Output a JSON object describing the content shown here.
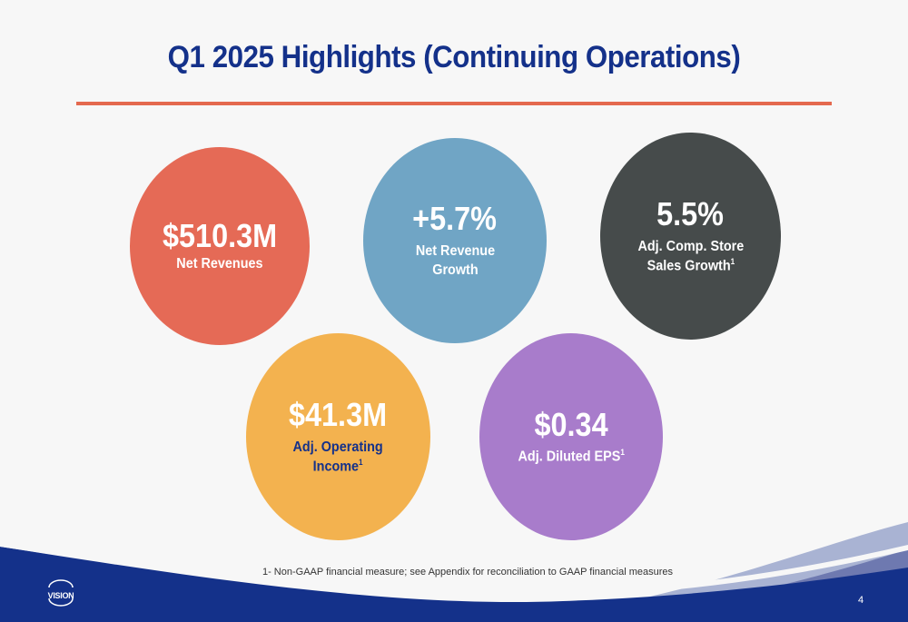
{
  "slide": {
    "title": "Q1 2025 Highlights (Continuing Operations)",
    "page_number": "4",
    "footnote": "1- Non-GAAP financial measure; see Appendix for reconciliation to GAAP financial measures",
    "logo_text": "VISION"
  },
  "highlights": [
    {
      "value": "$510.3M",
      "label_line1": "Net Revenues",
      "label_line2": "",
      "footnote_marker": "",
      "color": "#e56a56"
    },
    {
      "value": "+5.7%",
      "label_line1": "Net Revenue",
      "label_line2": "Growth",
      "footnote_marker": "",
      "color": "#70a5c5"
    },
    {
      "value": "5.5%",
      "label_line1": "Adj. Comp. Store",
      "label_line2": "Sales Growth",
      "footnote_marker": "1",
      "color": "#464b4b"
    },
    {
      "value": "$41.3M",
      "label_line1": "Adj. Operating",
      "label_line2": "Income",
      "footnote_marker": "1",
      "color": "#f3b24f"
    },
    {
      "value": "$0.34",
      "label_line1": "Adj. Diluted EPS",
      "label_line2": "",
      "footnote_marker": "1",
      "color": "#a87ccb"
    }
  ],
  "colors": {
    "title": "#14318a",
    "divider": "#e4694f",
    "footer_navy": "#14318a"
  }
}
